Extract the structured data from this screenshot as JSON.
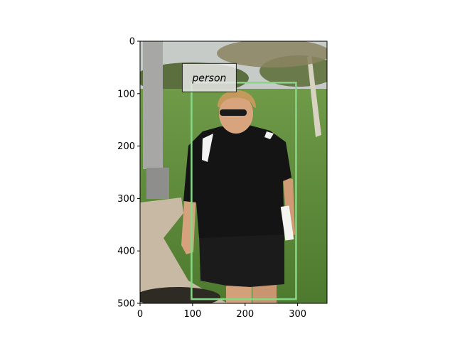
{
  "figure": {
    "x_ticks": [
      0,
      100,
      200,
      300
    ],
    "y_ticks": [
      0,
      100,
      200,
      300,
      400,
      500
    ],
    "x_range": [
      0,
      356
    ],
    "y_range": [
      0,
      500
    ],
    "y_inverted": true
  },
  "detections": [
    {
      "label": "person",
      "box": {
        "x_min": 98,
        "y_min": 79,
        "x_max": 297,
        "y_max": 492
      },
      "box_color": "#86d886",
      "label_bg": "#e8e8e8"
    }
  ],
  "scene_colors": {
    "sky": "#c8ccc8",
    "grass": "#5f8a3c",
    "path": "#c7b7a2",
    "pole": "#9a9a9a",
    "shirt": "#141414",
    "skin": "#d9a57f",
    "hair": "#c49a5c"
  }
}
